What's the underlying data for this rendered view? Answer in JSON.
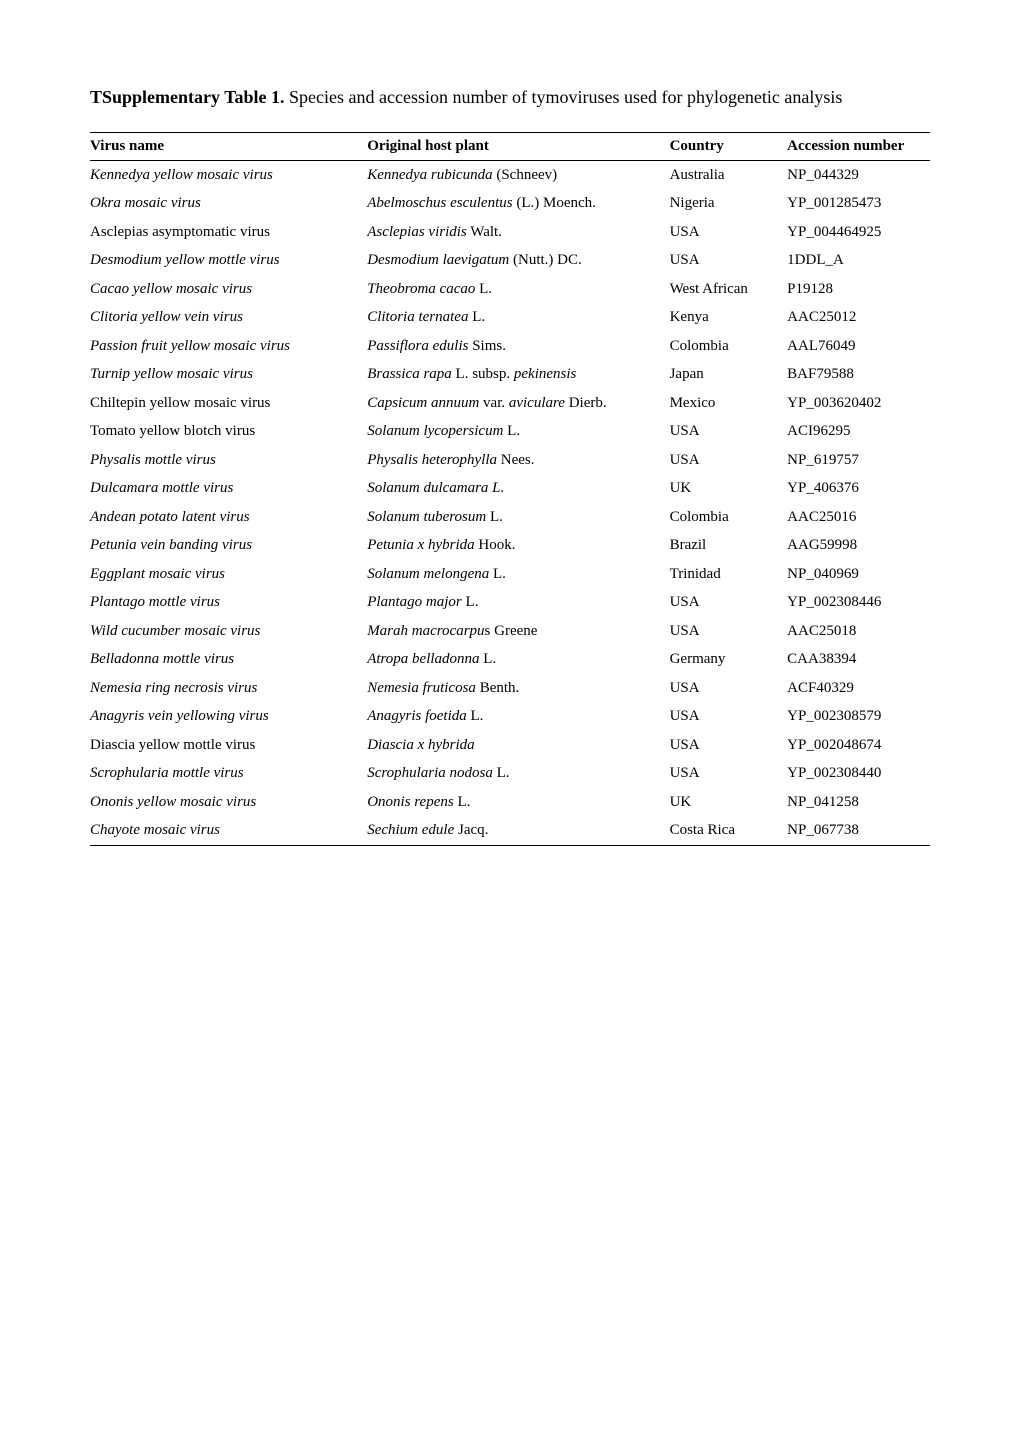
{
  "caption": {
    "bold_prefix": "TSupplementary Table 1.",
    "rest": " Species and accession number of tymoviruses used for phylogenetic analysis"
  },
  "headers": {
    "virus": "Virus name",
    "host": "Original host plant",
    "country": "Country",
    "accession": "Accession number"
  },
  "rows": [
    {
      "virus": "Kennedya yellow mosaic virus",
      "virus_italic": true,
      "host_pre_italic": "Kennedya rubicunda",
      "host_post": " (Schneev)",
      "country": "Australia",
      "accession": "NP_044329"
    },
    {
      "virus": "Okra mosaic virus",
      "virus_italic": true,
      "host_pre_italic": "Abelmoschus esculentus",
      "host_post": " (L.) Moench.",
      "country": "Nigeria",
      "accession": "YP_001285473"
    },
    {
      "virus": "Asclepias asymptomatic virus",
      "virus_italic": false,
      "host_pre_italic": "Asclepias viridis",
      "host_post": " Walt.",
      "country": "USA",
      "accession": "YP_004464925"
    },
    {
      "virus": "Desmodium yellow mottle virus",
      "virus_italic": true,
      "host_pre_italic": "Desmodium laevigatum",
      "host_post": " (Nutt.) DC.",
      "country": "USA",
      "accession": "1DDL_A"
    },
    {
      "virus": "Cacao yellow mosaic virus",
      "virus_italic": true,
      "host_pre_italic": "Theobroma cacao",
      "host_post": " L.",
      "country": "West African",
      "accession": "P19128"
    },
    {
      "virus": "Clitoria yellow vein virus",
      "virus_italic": true,
      "host_pre_italic": "Clitoria ternatea",
      "host_post": " L.",
      "country": "Kenya",
      "accession": "AAC25012"
    },
    {
      "virus": "Passion fruit yellow mosaic virus",
      "virus_italic": true,
      "host_pre_italic": "Passiflora edulis",
      "host_post": " Sims.",
      "country": "Colombia",
      "accession": "AAL76049"
    },
    {
      "virus": "Turnip yellow mosaic virus",
      "virus_italic": true,
      "host_full_italic": "Brassica rapa",
      "host_mid": " L. subsp. ",
      "host_full_italic2": "pekinensis",
      "country": "Japan",
      "accession": "BAF79588"
    },
    {
      "virus": "Chiltepin yellow mosaic virus",
      "virus_italic": false,
      "host_pre_italic": "Capsicum annuum",
      "host_mid_plain": " var. ",
      "host_post_italic": "aviculare",
      "host_post": " Dierb.",
      "country": "Mexico",
      "accession": "YP_003620402"
    },
    {
      "virus": "Tomato yellow blotch virus",
      "virus_italic": false,
      "host_pre_italic": "Solanum lycopersicum",
      "host_post": " L.",
      "country": "USA",
      "accession": "ACI96295"
    },
    {
      "virus": "Physalis mottle virus",
      "virus_italic": true,
      "host_pre_italic": "Physalis heterophylla",
      "host_post": " Nees.",
      "country": "USA",
      "accession": "NP_619757"
    },
    {
      "virus": "Dulcamara mottle virus",
      "virus_italic": true,
      "host_pre_italic": "Solanum dulcamara L.",
      "host_post": "",
      "country": "UK",
      "accession": "YP_406376"
    },
    {
      "virus": "Andean potato latent virus",
      "virus_italic": true,
      "host_pre_italic": "Solanum tuberosum",
      "host_post": " L.",
      "country": "Colombia",
      "accession": "AAC25016"
    },
    {
      "virus": "Petunia vein banding virus",
      "virus_italic": true,
      "host_pre_italic": "Petunia x hybrida",
      "host_post": " Hook.",
      "country": "Brazil",
      "accession": "AAG59998"
    },
    {
      "virus": "Eggplant mosaic virus",
      "virus_italic": true,
      "host_pre_italic": "Solanum melongena",
      "host_post": " L.",
      "country": "Trinidad",
      "accession": "NP_040969"
    },
    {
      "virus": "Plantago mottle virus",
      "virus_italic": true,
      "host_pre_italic": "Plantago major",
      "host_post": " L.",
      "country": "USA",
      "accession": "YP_002308446"
    },
    {
      "virus": "Wild cucumber mosaic virus",
      "virus_italic": true,
      "host_pre_italic": "Marah macrocarpu",
      "host_post": "s Greene",
      "country": "USA",
      "accession": "AAC25018"
    },
    {
      "virus": "Belladonna mottle virus",
      "virus_italic": true,
      "host_pre_italic": "Atropa belladonna",
      "host_post": " L.",
      "country": "Germany",
      "accession": "CAA38394"
    },
    {
      "virus": "Nemesia ring necrosis virus",
      "virus_italic": true,
      "host_pre_italic": "Nemesia fruticosa",
      "host_post": " Benth.",
      "country": "USA",
      "accession": "ACF40329"
    },
    {
      "virus": "Anagyris vein yellowing virus",
      "virus_italic": true,
      "host_pre_italic": "Anagyris foetida",
      "host_post": " L.",
      "country": "USA",
      "accession": "YP_002308579"
    },
    {
      "virus": "Diascia yellow mottle virus",
      "virus_italic": false,
      "host_pre_italic": "Diascia x hybrida",
      "host_post": "",
      "country": "USA",
      "accession": "YP_002048674"
    },
    {
      "virus": "Scrophularia mottle virus",
      "virus_italic": true,
      "host_pre_italic": "Scrophularia nodosa",
      "host_post": " L.",
      "country": "USA",
      "accession": "YP_002308440"
    },
    {
      "virus": "Ononis yellow mosaic virus",
      "virus_italic": true,
      "host_pre_italic": "Ononis repens",
      "host_post": " L.",
      "country": "UK",
      "accession": "NP_041258"
    },
    {
      "virus": "Chayote mosaic virus",
      "virus_italic": true,
      "host_pre_italic": "Sechium edule",
      "host_post": " Jacq.",
      "country": "Costa Rica",
      "accession": "NP_067738"
    }
  ]
}
